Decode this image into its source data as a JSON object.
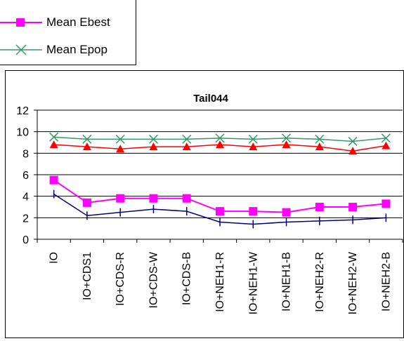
{
  "legend": {
    "items": [
      {
        "label": "Mean Ebest",
        "color": "#ff00ff",
        "marker": "square"
      },
      {
        "label": "Mean Epop",
        "color": "#339966",
        "marker": "x"
      }
    ]
  },
  "chart_data": {
    "type": "line",
    "title": "Tail044",
    "categories": [
      "IO",
      "IO+CDS1",
      "IO+CDS-R",
      "IO+CDS-W",
      "IO+CDS-B",
      "IO+NEH1-R",
      "IO+NEH1-W",
      "IO+NEH1-B",
      "IO+NEH2-R",
      "IO+NEH2-W",
      "IO+NEH2-B"
    ],
    "ylim": [
      0,
      12
    ],
    "yticks": [
      0,
      2,
      4,
      6,
      8,
      10,
      12
    ],
    "grid": true,
    "series": [
      {
        "name": "Mean Epop",
        "color": "#339966",
        "marker": "x",
        "values": [
          9.5,
          9.3,
          9.3,
          9.3,
          9.3,
          9.4,
          9.3,
          9.4,
          9.3,
          9.1,
          9.4
        ]
      },
      {
        "color": "#ff0000",
        "marker": "triangle",
        "values": [
          8.8,
          8.6,
          8.4,
          8.6,
          8.6,
          8.8,
          8.6,
          8.8,
          8.6,
          8.2,
          8.7
        ]
      },
      {
        "name": "Mean Ebest",
        "color": "#ff00ff",
        "marker": "square",
        "values": [
          5.5,
          3.4,
          3.8,
          3.8,
          3.8,
          2.6,
          2.6,
          2.5,
          3.0,
          3.0,
          3.3
        ]
      },
      {
        "color": "#000080",
        "marker": "plus",
        "values": [
          4.2,
          2.2,
          2.5,
          2.8,
          2.6,
          1.6,
          1.4,
          1.6,
          1.7,
          1.8,
          2.0
        ]
      }
    ]
  }
}
